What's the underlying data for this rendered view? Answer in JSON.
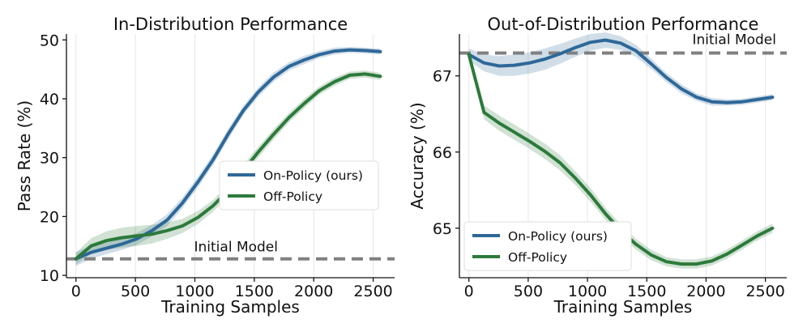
{
  "chart_data": [
    {
      "type": "line",
      "title": "In-Distribution Performance",
      "xlabel": "Training Samples",
      "ylabel": "Pass Rate (%)",
      "xlim": [
        -80,
        2680
      ],
      "ylim": [
        9.6,
        51
      ],
      "xticks": [
        0,
        500,
        1000,
        1500,
        2000,
        2500
      ],
      "xtick_labels": [
        "0",
        "500",
        "1000",
        "1500",
        "2000",
        "2500"
      ],
      "yticks": [
        10,
        20,
        30,
        40,
        50
      ],
      "ytick_labels": [
        "10",
        "20",
        "30",
        "40",
        "50"
      ],
      "grid": "vertical",
      "legend": "center-right",
      "baseline": {
        "label": "Initial Model",
        "value": 12.8
      },
      "x": [
        0,
        128,
        256,
        384,
        512,
        640,
        768,
        896,
        1024,
        1152,
        1280,
        1408,
        1536,
        1664,
        1792,
        1920,
        2048,
        2176,
        2304,
        2432,
        2560
      ],
      "series": [
        {
          "name": "On-Policy (ours)",
          "color": "#2e6898",
          "values": [
            12.8,
            13.9,
            14.6,
            15.3,
            16.2,
            17.6,
            19.4,
            22.3,
            25.8,
            29.6,
            34.0,
            38.0,
            41.2,
            43.7,
            45.5,
            46.6,
            47.5,
            48.1,
            48.3,
            48.2,
            48.0
          ],
          "band": [
            1.2,
            1.1,
            1.0,
            1.0,
            1.0,
            1.0,
            1.0,
            0.9,
            0.9,
            0.9,
            0.9,
            0.8,
            0.8,
            0.8,
            0.7,
            0.7,
            0.6,
            0.6,
            0.5,
            0.5,
            0.5
          ]
        },
        {
          "name": "Off-Policy",
          "color": "#2c7a3b",
          "values": [
            12.8,
            15.0,
            15.9,
            16.4,
            16.7,
            17.0,
            17.6,
            18.4,
            19.8,
            21.8,
            24.4,
            27.8,
            31.0,
            34.0,
            36.8,
            39.2,
            41.4,
            42.9,
            44.0,
            44.2,
            43.8
          ],
          "band": [
            1.0,
            1.3,
            1.6,
            1.7,
            1.7,
            1.6,
            1.4,
            1.2,
            1.1,
            1.0,
            1.0,
            1.0,
            0.9,
            0.9,
            0.8,
            0.8,
            0.7,
            0.7,
            0.6,
            0.6,
            0.6
          ]
        }
      ]
    },
    {
      "type": "line",
      "title": "Out-of-Distribution Performance",
      "xlabel": "Training Samples",
      "ylabel": "Accuracy (%)",
      "xlim": [
        -80,
        2680
      ],
      "ylim": [
        64.35,
        67.55
      ],
      "xticks": [
        0,
        500,
        1000,
        1500,
        2000,
        2500
      ],
      "xtick_labels": [
        "0",
        "500",
        "1000",
        "1500",
        "2000",
        "2500"
      ],
      "yticks": [
        65,
        66,
        67
      ],
      "ytick_labels": [
        "65",
        "66",
        "67"
      ],
      "grid": "vertical",
      "legend": "bottom-left",
      "baseline": {
        "label": "Initial Model",
        "value": 67.3
      },
      "x": [
        0,
        128,
        256,
        384,
        512,
        640,
        768,
        896,
        1024,
        1152,
        1280,
        1408,
        1536,
        1664,
        1792,
        1920,
        2048,
        2176,
        2304,
        2432,
        2560
      ],
      "series": [
        {
          "name": "On-Policy (ours)",
          "color": "#2e6898",
          "values": [
            67.28,
            67.17,
            67.13,
            67.14,
            67.17,
            67.22,
            67.29,
            67.37,
            67.44,
            67.47,
            67.43,
            67.33,
            67.16,
            66.98,
            66.83,
            66.72,
            66.66,
            66.65,
            66.66,
            66.69,
            66.72
          ],
          "band": [
            0.08,
            0.11,
            0.13,
            0.14,
            0.14,
            0.14,
            0.13,
            0.12,
            0.11,
            0.1,
            0.09,
            0.08,
            0.07,
            0.06,
            0.06,
            0.05,
            0.05,
            0.04,
            0.04,
            0.04,
            0.04
          ]
        },
        {
          "name": "Off-Policy",
          "color": "#2c7a3b",
          "values": [
            67.28,
            66.52,
            66.38,
            66.26,
            66.14,
            66.01,
            65.86,
            65.66,
            65.44,
            65.19,
            64.97,
            64.79,
            64.65,
            64.56,
            64.53,
            64.53,
            64.57,
            64.66,
            64.78,
            64.9,
            65.0
          ],
          "band": [
            0.05,
            0.09,
            0.1,
            0.1,
            0.1,
            0.1,
            0.1,
            0.09,
            0.09,
            0.08,
            0.08,
            0.07,
            0.07,
            0.06,
            0.06,
            0.06,
            0.06,
            0.06,
            0.06,
            0.06,
            0.06
          ]
        }
      ]
    }
  ]
}
